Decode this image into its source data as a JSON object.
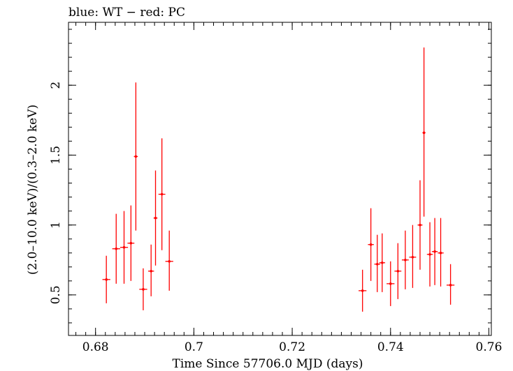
{
  "chart_data": {
    "type": "scatter",
    "title": "blue: WT − red: PC",
    "xlabel": "Time Since 57706.0 MJD (days)",
    "ylabel": "(2.0–10.0 keV)/(0.3–2.0 keV)",
    "xlim": [
      0.6745,
      0.7605
    ],
    "ylim": [
      0.21,
      2.45
    ],
    "x_ticks": [
      {
        "value": 0.68,
        "label": "0.68"
      },
      {
        "value": 0.7,
        "label": "0.7"
      },
      {
        "value": 0.72,
        "label": "0.72"
      },
      {
        "value": 0.74,
        "label": "0.74"
      },
      {
        "value": 0.76,
        "label": "0.76"
      }
    ],
    "y_ticks": [
      {
        "value": 0.5,
        "label": "0.5"
      },
      {
        "value": 1.0,
        "label": "1"
      },
      {
        "value": 1.5,
        "label": "1.5"
      },
      {
        "value": 2.0,
        "label": "2"
      }
    ],
    "x_minor_step": 0.002,
    "y_minor_step": 0.1,
    "grid": false,
    "series": [
      {
        "color": "#ff0000",
        "points": [
          {
            "x": 0.6822,
            "xerr": 0.0008,
            "y": 0.61,
            "ylo": 0.44,
            "yhi": 0.78
          },
          {
            "x": 0.6842,
            "xerr": 0.0008,
            "y": 0.83,
            "ylo": 0.58,
            "yhi": 1.08
          },
          {
            "x": 0.6858,
            "xerr": 0.0008,
            "y": 0.84,
            "ylo": 0.58,
            "yhi": 1.1
          },
          {
            "x": 0.6872,
            "xerr": 0.0007,
            "y": 0.87,
            "ylo": 0.6,
            "yhi": 1.14
          },
          {
            "x": 0.6882,
            "xerr": 0.0004,
            "y": 1.49,
            "ylo": 0.96,
            "yhi": 2.02
          },
          {
            "x": 0.6897,
            "xerr": 0.0008,
            "y": 0.54,
            "ylo": 0.39,
            "yhi": 0.69
          },
          {
            "x": 0.6913,
            "xerr": 0.0006,
            "y": 0.67,
            "ylo": 0.49,
            "yhi": 0.86
          },
          {
            "x": 0.6922,
            "xerr": 0.0004,
            "y": 1.05,
            "ylo": 0.71,
            "yhi": 1.39
          },
          {
            "x": 0.6935,
            "xerr": 0.0007,
            "y": 1.22,
            "ylo": 0.82,
            "yhi": 1.62
          },
          {
            "x": 0.695,
            "xerr": 0.0008,
            "y": 0.74,
            "ylo": 0.53,
            "yhi": 0.96
          },
          {
            "x": 0.7343,
            "xerr": 0.0008,
            "y": 0.53,
            "ylo": 0.38,
            "yhi": 0.68
          },
          {
            "x": 0.736,
            "xerr": 0.0006,
            "y": 0.86,
            "ylo": 0.6,
            "yhi": 1.12
          },
          {
            "x": 0.7373,
            "xerr": 0.0006,
            "y": 0.72,
            "ylo": 0.52,
            "yhi": 0.93
          },
          {
            "x": 0.7383,
            "xerr": 0.0006,
            "y": 0.73,
            "ylo": 0.52,
            "yhi": 0.94
          },
          {
            "x": 0.74,
            "xerr": 0.0008,
            "y": 0.58,
            "ylo": 0.42,
            "yhi": 0.74
          },
          {
            "x": 0.7415,
            "xerr": 0.0007,
            "y": 0.67,
            "ylo": 0.47,
            "yhi": 0.87
          },
          {
            "x": 0.743,
            "xerr": 0.0007,
            "y": 0.75,
            "ylo": 0.54,
            "yhi": 0.96
          },
          {
            "x": 0.7445,
            "xerr": 0.0007,
            "y": 0.77,
            "ylo": 0.55,
            "yhi": 1.0
          },
          {
            "x": 0.746,
            "xerr": 0.0005,
            "y": 1.0,
            "ylo": 0.68,
            "yhi": 1.32
          },
          {
            "x": 0.7468,
            "xerr": 0.0003,
            "y": 1.66,
            "ylo": 1.06,
            "yhi": 2.27
          },
          {
            "x": 0.748,
            "xerr": 0.0006,
            "y": 0.79,
            "ylo": 0.56,
            "yhi": 1.02
          },
          {
            "x": 0.749,
            "xerr": 0.0006,
            "y": 0.81,
            "ylo": 0.57,
            "yhi": 1.05
          },
          {
            "x": 0.7502,
            "xerr": 0.0006,
            "y": 0.8,
            "ylo": 0.56,
            "yhi": 1.05
          },
          {
            "x": 0.7522,
            "xerr": 0.0008,
            "y": 0.57,
            "ylo": 0.43,
            "yhi": 0.72
          }
        ]
      }
    ]
  }
}
